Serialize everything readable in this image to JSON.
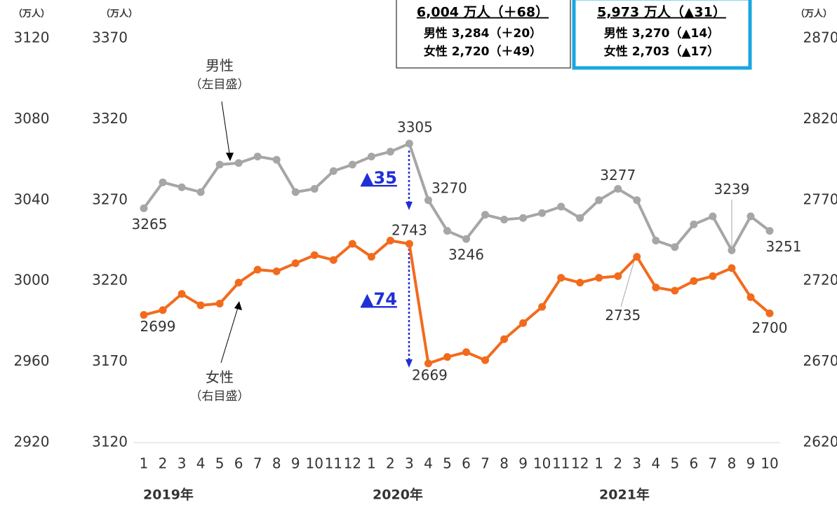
{
  "chart_data": {
    "type": "line",
    "categories": [
      "1",
      "2",
      "3",
      "4",
      "5",
      "6",
      "7",
      "8",
      "9",
      "10",
      "11",
      "12",
      "1",
      "2",
      "3",
      "4",
      "5",
      "6",
      "7",
      "8",
      "9",
      "10",
      "11",
      "12",
      "1",
      "2",
      "3",
      "4",
      "5",
      "6",
      "7",
      "8",
      "9",
      "10"
    ],
    "years": [
      "2019年",
      "2020年",
      "2021年"
    ],
    "units": [
      "（万人）",
      "（万人）",
      "（万人）"
    ],
    "series": [
      {
        "name": "男性",
        "note": "（左目盛）",
        "color": "#a6a6a6",
        "values": [
          3265,
          3281,
          3278,
          3275,
          3292,
          3293,
          3297,
          3295,
          3275,
          3277,
          3288,
          3292,
          3297,
          3300,
          3305,
          3270,
          3251,
          3246,
          3261,
          3258,
          3259,
          3262,
          3266,
          3259,
          3270,
          3277,
          3270,
          3245,
          3241,
          3255,
          3260,
          3239,
          3260,
          3251
        ],
        "value_labels": [
          "3265",
          null,
          null,
          null,
          null,
          null,
          null,
          null,
          null,
          null,
          null,
          null,
          null,
          null,
          "3305",
          "3270",
          null,
          "3246",
          null,
          null,
          null,
          null,
          null,
          null,
          null,
          "3277",
          null,
          null,
          null,
          null,
          null,
          "3239",
          null,
          "3251"
        ]
      },
      {
        "name": "女性",
        "note": "（右目盛）",
        "color": "#f26b1d",
        "axis": "y2",
        "values": [
          2699,
          2702,
          2712,
          2705,
          2706,
          2719,
          2727,
          2726,
          2731,
          2736,
          2733,
          2743,
          2735,
          2745,
          2743,
          2669,
          2673,
          2676,
          2671,
          2684,
          2694,
          2704,
          2722,
          2719,
          2722,
          2723,
          2735,
          2716,
          2714,
          2720,
          2723,
          2728,
          2710,
          2700
        ],
        "value_labels": [
          "2699",
          null,
          null,
          null,
          null,
          null,
          null,
          null,
          null,
          null,
          null,
          null,
          null,
          null,
          "2743",
          "2669",
          null,
          null,
          null,
          null,
          null,
          null,
          null,
          null,
          null,
          null,
          "2735",
          null,
          null,
          null,
          null,
          null,
          null,
          "2700"
        ]
      }
    ],
    "ylim": [
      3120,
      3370
    ],
    "yticks": [
      3120,
      3170,
      3220,
      3270,
      3320,
      3370
    ],
    "y2lim": [
      2620,
      2870
    ],
    "y2ticks": [
      2620,
      2670,
      2720,
      2770,
      2820,
      2870
    ],
    "y3lim": [
      2920,
      3120
    ],
    "y3ticks": [
      2920,
      2960,
      3000,
      3040,
      3080,
      3120
    ],
    "drops": [
      "▲35",
      "▲74"
    ]
  },
  "boxes": [
    {
      "lines": [
        "6,004 万人（＋68）",
        "男性 3,284（＋20）",
        "女性 2,720（＋49）"
      ]
    },
    {
      "lines": [
        "5,973 万人（▲31）",
        "男性 3,270（▲14）",
        "女性 2,703（▲17）"
      ]
    }
  ]
}
